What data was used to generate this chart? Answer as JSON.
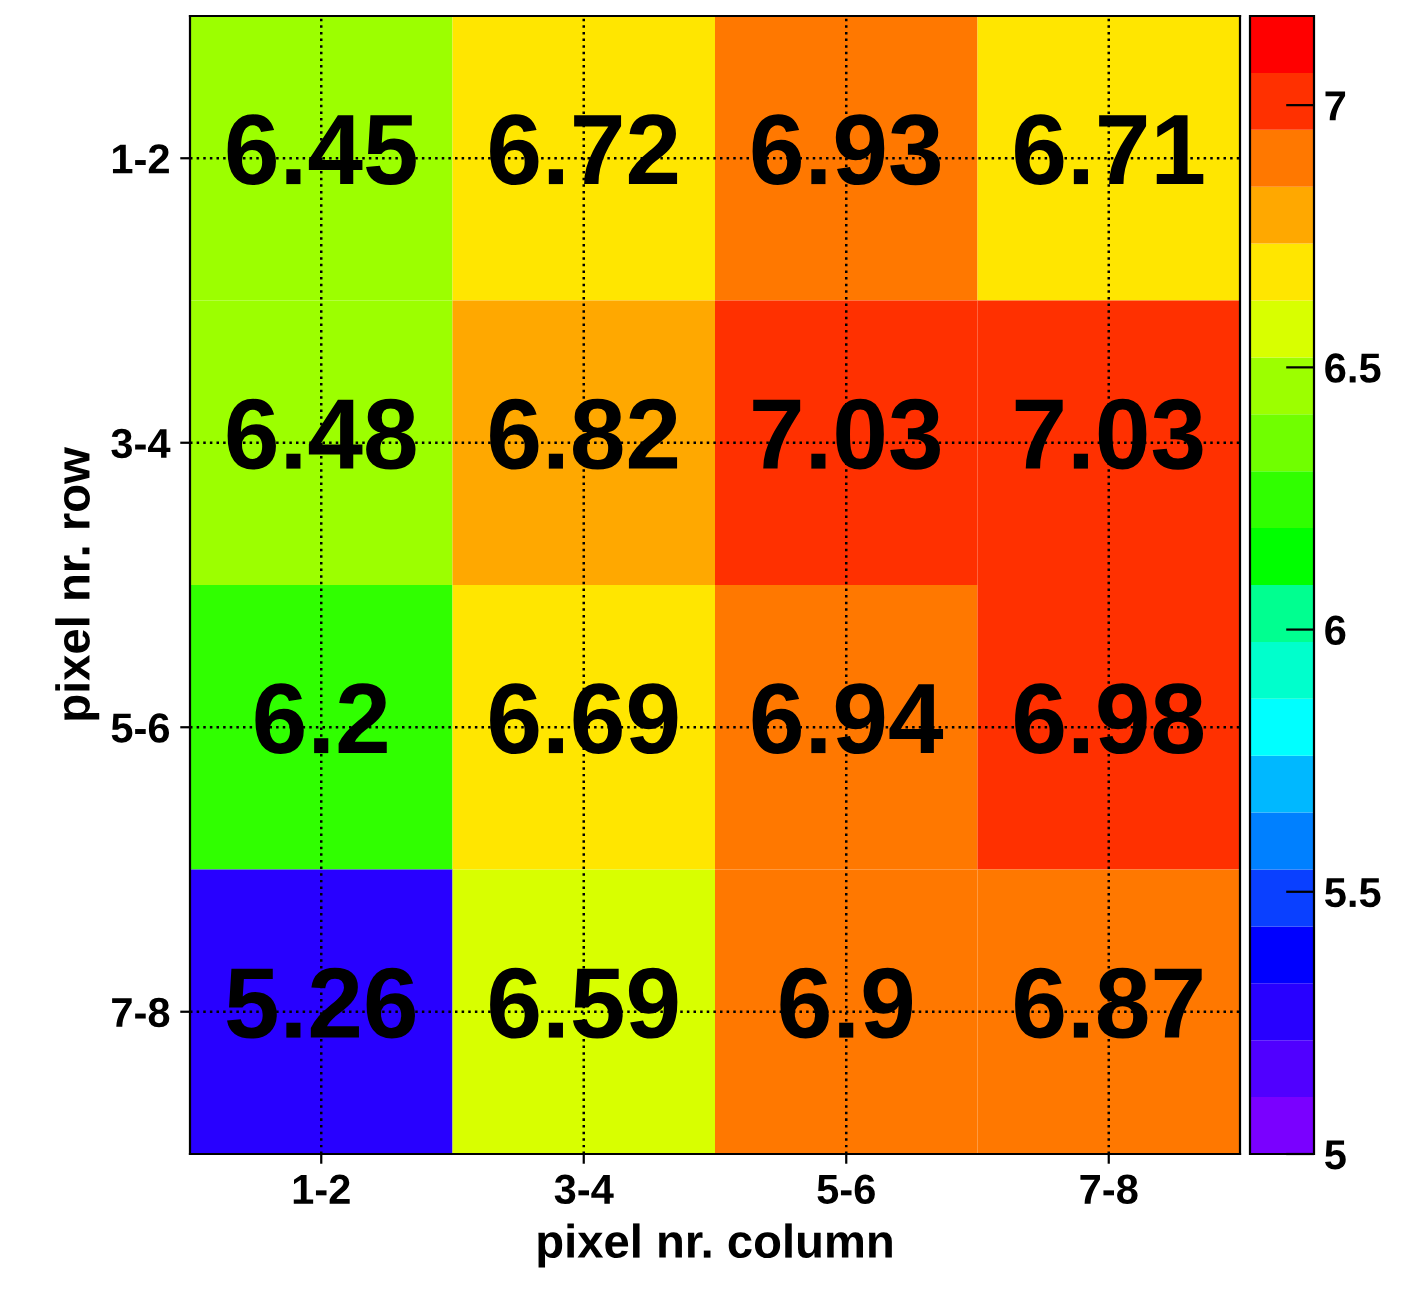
{
  "chart_data": {
    "type": "heatmap",
    "xlabel": "pixel nr. column",
    "ylabel": "pixel nr. row",
    "categories": [
      "1-2",
      "3-4",
      "5-6",
      "7-8"
    ],
    "y_categories": [
      "1-2",
      "3-4",
      "5-6",
      "7-8"
    ],
    "cells": [
      [
        6.45,
        6.72,
        6.93,
        6.71
      ],
      [
        6.48,
        6.82,
        7.03,
        7.03
      ],
      [
        6.2,
        6.69,
        6.94,
        6.98
      ],
      [
        5.26,
        6.59,
        6.9,
        6.87
      ]
    ],
    "clim": [
      5,
      7.17
    ],
    "cticks": [
      5,
      5.5,
      6,
      6.5,
      7
    ],
    "data_labels": true,
    "grid": true
  }
}
